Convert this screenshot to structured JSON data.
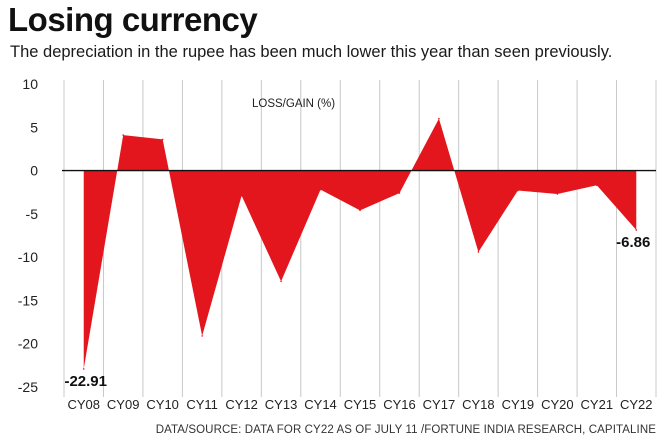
{
  "header": {
    "title": "Losing currency",
    "subtitle": "The depreciation in the rupee has been much lower this year than seen previously."
  },
  "footer": {
    "source": "DATA/SOURCE: DATA FOR CY22 AS OF JULY 11 /FORTUNE INDIA RESEARCH, CAPITALINE"
  },
  "colors": {
    "area_fill": "#e3161d",
    "zero_line": "#111111",
    "grid": "#c8c8c8"
  },
  "chart_data": {
    "type": "area",
    "title": "Losing currency",
    "subtitle": "The depreciation in the rupee has been much lower this year than seen previously.",
    "ylabel": "LOSS/GAIN (%)",
    "xlabel": "",
    "ylim": [
      -25,
      10
    ],
    "yticks": [
      10,
      5,
      0,
      -5,
      -10,
      -15,
      -20,
      -25
    ],
    "grid": "vertical",
    "categories": [
      "CY08",
      "CY09",
      "CY10",
      "CY11",
      "CY12",
      "CY13",
      "CY14",
      "CY15",
      "CY16",
      "CY17",
      "CY18",
      "CY19",
      "CY20",
      "CY21",
      "CY22"
    ],
    "values": [
      -22.91,
      4.1,
      3.6,
      -19.1,
      -2.9,
      -12.8,
      -2.2,
      -4.6,
      -2.6,
      6.0,
      -9.4,
      -2.3,
      -2.7,
      -1.7,
      -6.86
    ],
    "data_labels": [
      {
        "category": "CY08",
        "text": "-22.91"
      },
      {
        "category": "CY22",
        "text": "-6.86"
      }
    ]
  }
}
